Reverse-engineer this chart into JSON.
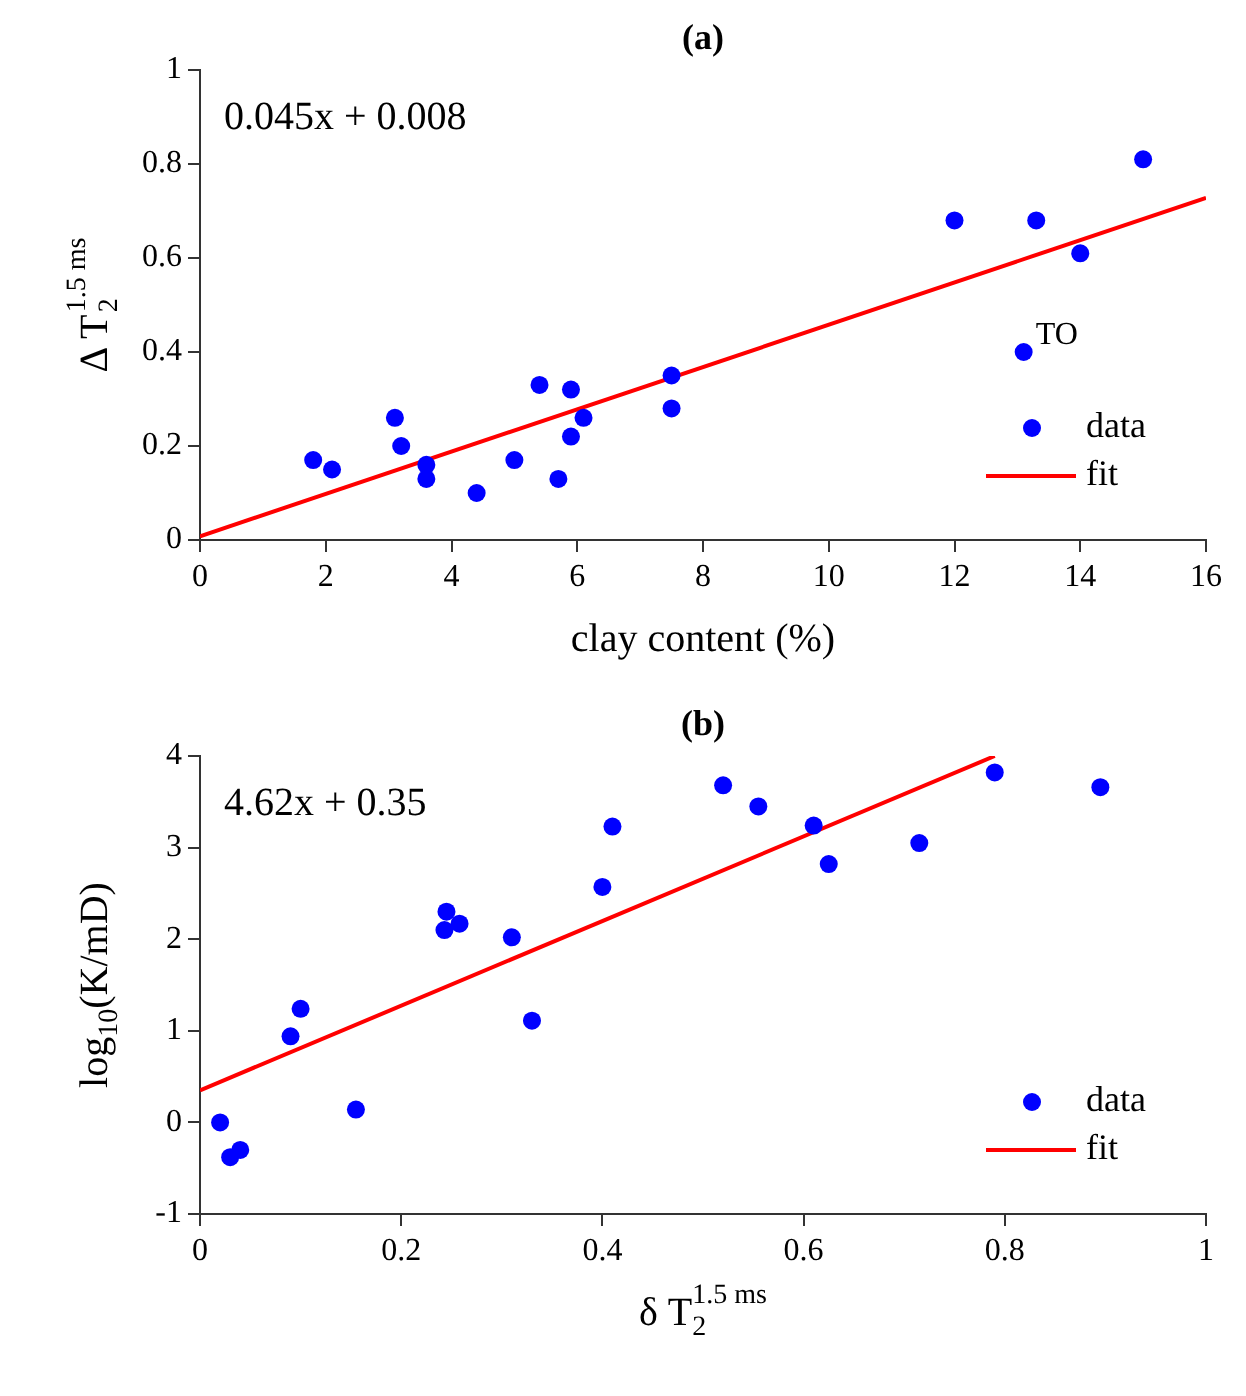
{
  "chart_data": [
    {
      "type": "scatter",
      "title": "(a)",
      "xlabel": "clay content (%)",
      "ylabel": "Δ T$_{2}$$^{1.5 ms}$",
      "xlim": [
        0,
        16
      ],
      "xticks": [
        0,
        2,
        4,
        6,
        8,
        10,
        12,
        14,
        16
      ],
      "ylim": [
        0,
        1
      ],
      "yticks": [
        0,
        0.2,
        0.4,
        0.6,
        0.8,
        1
      ],
      "grid": false,
      "legend": "bottom right",
      "annotations": [
        "0.045x + 0.008",
        {
          "text": "TO",
          "x": 13.1,
          "y": 0.4
        }
      ],
      "series": [
        {
          "name": "data",
          "type": "scatter",
          "marker": "circle",
          "color": "#0000ff",
          "x": [
            1.8,
            2.1,
            3.1,
            3.2,
            3.6,
            3.6,
            4.4,
            5.0,
            5.4,
            5.7,
            5.9,
            5.9,
            6.1,
            7.5,
            7.5,
            12,
            13.3,
            14,
            15,
            13.1
          ],
          "values": [
            0.17,
            0.15,
            0.26,
            0.2,
            0.16,
            0.13,
            0.1,
            0.17,
            0.33,
            0.13,
            0.32,
            0.22,
            0.26,
            0.35,
            0.28,
            0.68,
            0.68,
            0.61,
            0.81,
            0.4
          ]
        },
        {
          "name": "fit",
          "type": "line",
          "marker": "none",
          "color": "#ff0000",
          "x": [
            0,
            16
          ],
          "values": [
            0.008,
            0.728
          ]
        }
      ]
    },
    {
      "type": "scatter",
      "title": "(b)",
      "xlabel": "δ T$_{2}$$^{1.5 ms}$",
      "ylabel": "log$_{10}$(K/mD)",
      "xlim": [
        0,
        1
      ],
      "xticks": [
        0,
        0.2,
        0.4,
        0.6,
        0.8,
        1
      ],
      "ylim": [
        -1,
        4
      ],
      "yticks": [
        -1,
        0,
        1,
        2,
        3,
        4
      ],
      "grid": false,
      "legend": "bottom right",
      "annotations": [
        "4.62x + 0.35"
      ],
      "series": [
        {
          "name": "data",
          "type": "scatter",
          "marker": "circle",
          "color": "#0000ff",
          "x": [
            0.02,
            0.03,
            0.04,
            0.09,
            0.1,
            0.155,
            0.243,
            0.245,
            0.258,
            0.31,
            0.33,
            0.4,
            0.41,
            0.52,
            0.555,
            0.61,
            0.625,
            0.715,
            0.79,
            0.895
          ],
          "values": [
            0.0,
            -0.38,
            -0.3,
            0.94,
            1.24,
            0.14,
            2.1,
            2.3,
            2.17,
            2.02,
            1.11,
            2.57,
            3.23,
            3.68,
            3.45,
            3.24,
            2.82,
            3.05,
            3.82,
            3.66
          ]
        },
        {
          "name": "fit",
          "type": "line",
          "marker": "none",
          "color": "#ff0000",
          "x": [
            0,
            0.79
          ],
          "values": [
            0.35,
            4.0
          ]
        }
      ]
    }
  ]
}
